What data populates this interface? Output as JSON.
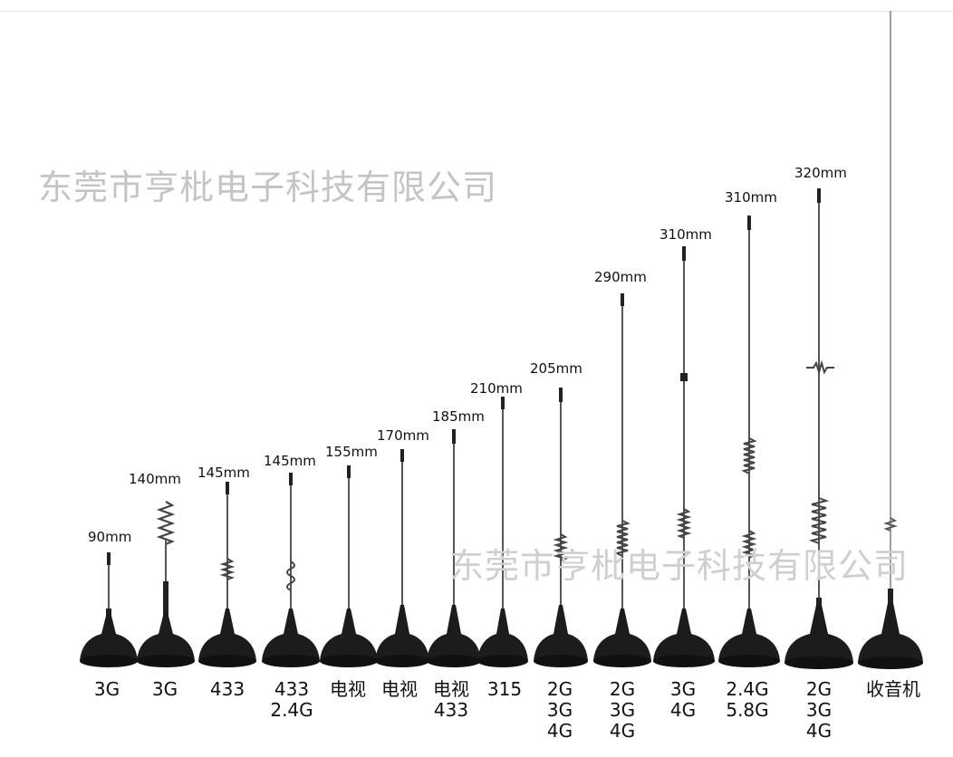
{
  "watermark": "东莞市亨枇电子科技有限公司",
  "antennas": [
    {
      "length": "90mm",
      "band": "3G"
    },
    {
      "length": "140mm",
      "band": "3G"
    },
    {
      "length": "145mm",
      "band": "433"
    },
    {
      "length": "145mm",
      "band": "433\n2.4G"
    },
    {
      "length": "155mm",
      "band": "电视"
    },
    {
      "length": "170mm",
      "band": "电视"
    },
    {
      "length": "185mm",
      "band": "电视\n433"
    },
    {
      "length": "210mm",
      "band": "315"
    },
    {
      "length": "205mm",
      "band": "2G\n3G\n4G"
    },
    {
      "length": "290mm",
      "band": "2G\n3G\n4G"
    },
    {
      "length": "310mm",
      "band": "3G\n4G"
    },
    {
      "length": "310mm",
      "band": "2.4G\n5.8G"
    },
    {
      "length": "320mm",
      "band": "2G\n3G\n4G"
    },
    {
      "length": "",
      "band": "收音机"
    }
  ]
}
